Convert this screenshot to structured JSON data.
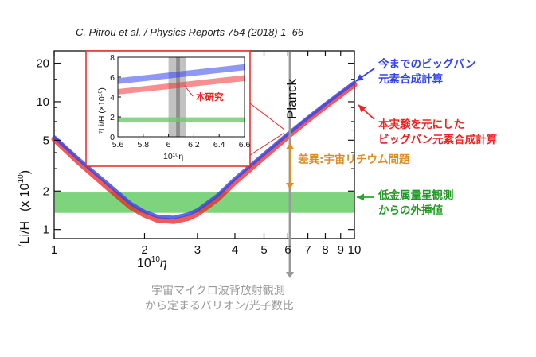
{
  "citation": "C. Pitrou et al. / Physics Reports 754 (2018) 1–66",
  "chart_data": {
    "type": "line",
    "xscale": "log",
    "yscale": "log",
    "xlim": [
      1,
      10
    ],
    "ylim": [
      0.85,
      25
    ],
    "xticks": [
      "1",
      "2",
      "3",
      "4",
      "5",
      "6",
      "7",
      "8",
      "9",
      "10"
    ],
    "yticks": [
      "1",
      "2",
      "5",
      "10",
      "20"
    ],
    "xlabel_base": "10",
    "xlabel_exp": "10",
    "xlabel_sym": "η",
    "ylabel_sup": "7",
    "ylabel_main": "Li/H",
    "ylabel_unit_pre": "(x 10",
    "ylabel_unit_exp": "10",
    "ylabel_unit_post": ")",
    "series": [
      {
        "name_lines": [
          "今までのビッグバン",
          "元素合成計算"
        ],
        "color": "#3344ee",
        "x": [
          1,
          1.2,
          1.5,
          1.8,
          2.0,
          2.2,
          2.5,
          2.8,
          3.0,
          3.5,
          4.0,
          5.0,
          6.0,
          7.0,
          8.0,
          9.0,
          10.0
        ],
        "y": [
          5.3,
          3.6,
          2.3,
          1.6,
          1.38,
          1.27,
          1.24,
          1.32,
          1.42,
          1.85,
          2.5,
          3.9,
          5.6,
          7.5,
          9.6,
          11.8,
          14.2
        ]
      },
      {
        "name_lines": [
          "本実験を元にした",
          "ビッグバン元素合成計算"
        ],
        "color": "#ee2222",
        "x": [
          1,
          1.2,
          1.5,
          1.8,
          2.0,
          2.2,
          2.5,
          2.8,
          3.0,
          3.5,
          4.0,
          5.0,
          6.0,
          7.0,
          8.0,
          9.0,
          10.0
        ],
        "y": [
          5.1,
          3.4,
          2.15,
          1.5,
          1.3,
          1.19,
          1.16,
          1.23,
          1.33,
          1.73,
          2.35,
          3.7,
          5.35,
          7.2,
          9.2,
          11.3,
          13.6
        ]
      }
    ],
    "observation_band": {
      "label_lines": [
        "低金属量星観測",
        "からの外挿値"
      ],
      "ymin": 1.35,
      "ymax": 1.95,
      "color": "#66cc66"
    },
    "planck": {
      "x": 6.1,
      "label": "Planck",
      "color": "#999999",
      "label_lines": [
        "宇宙マイクロ波背放射観測",
        "から定まるバリオン/光子数比"
      ]
    },
    "discrepancy": {
      "label": "差異:宇宙リチウム問題",
      "color": "#dd8f22"
    },
    "inset": {
      "xlim": [
        5.6,
        6.6
      ],
      "ylim": [
        0,
        8
      ],
      "xticks": [
        "5.6",
        "5.8",
        "6",
        "6.2",
        "6.4",
        "6.6"
      ],
      "yticks": [
        "0",
        "2",
        "4",
        "6",
        "8"
      ],
      "ylabel": "⁷Li/H (×10¹⁰)",
      "xlabel": "10¹⁰η",
      "label": "本研究",
      "label_color": "#ee2222",
      "planck_band": [
        6.0,
        6.14
      ],
      "blue_band": [
        [
          5.6,
          5.3,
          5.9
        ],
        [
          6.6,
          6.7,
          7.3
        ]
      ],
      "red_band": [
        [
          5.6,
          4.25,
          4.8
        ],
        [
          6.6,
          5.6,
          6.2
        ]
      ],
      "green_band": [
        1.5,
        1.95
      ]
    }
  }
}
